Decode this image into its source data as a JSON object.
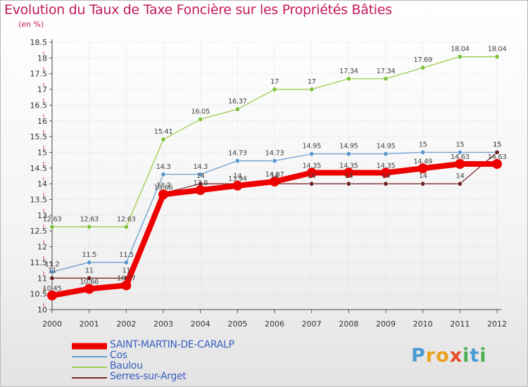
{
  "header": {
    "title": "Evolution du Taux de Taxe Foncière sur les Propriétés Bâties",
    "unit": "(en %)"
  },
  "logo": {
    "text": "Proxiti",
    "letters": [
      "P",
      "r",
      "o",
      "x",
      "i",
      "t",
      "i"
    ],
    "letter_colors": [
      "#4a9ad4",
      "#e8a21c",
      "#e8a21c",
      "#e64b2a",
      "#4caf50",
      "#4a9ad4",
      "#4caf50"
    ]
  },
  "chart_data": {
    "type": "line",
    "title": "Evolution du Taux de Taxe Foncière sur les Propriétés Bâties",
    "ylabel": "(en %)",
    "xlabel": "",
    "x": [
      "2000",
      "2001",
      "2002",
      "2003",
      "2004",
      "2005",
      "2006",
      "2007",
      "2008",
      "2009",
      "2010",
      "2011",
      "2012"
    ],
    "ylim": [
      10,
      18.5
    ],
    "yticks": [
      "10",
      "10.5",
      "11",
      "11.5",
      "12",
      "12.5",
      "13",
      "13.5",
      "14",
      "14.5",
      "15",
      "15.5",
      "16",
      "16.5",
      "17",
      "17.5",
      "18",
      "18.5"
    ],
    "grid": true,
    "legend_position": "bottom-left",
    "series": [
      {
        "name": "Baulou",
        "color": "#9ccc4c",
        "marker_color": "#7cc33a",
        "style": "thin",
        "values": [
          12.63,
          12.63,
          12.63,
          15.41,
          16.05,
          16.37,
          17,
          17,
          17.34,
          17.34,
          17.69,
          18.04,
          18.04
        ],
        "labels": [
          "12.63",
          "12.63",
          "12.63",
          "15.41",
          "16.05",
          "16.37",
          "17",
          "17",
          "17.34",
          "17.34",
          "17.69",
          "18.04",
          "18.04"
        ]
      },
      {
        "name": "Cos",
        "color": "#6a9fd0",
        "marker_color": "#5b97cf",
        "style": "thin",
        "values": [
          11.2,
          11.5,
          11.5,
          14.3,
          14.3,
          14.73,
          14.73,
          14.95,
          14.95,
          14.95,
          15,
          15,
          15
        ],
        "labels": [
          "11.2",
          "11.5",
          "11.5",
          "14.3",
          "14.3",
          "14.73",
          "14.73",
          "14.95",
          "14.95",
          "14.95",
          "15",
          "15",
          "15"
        ]
      },
      {
        "name": "Serres-sur-Arget",
        "color": "#7a2a2a",
        "marker_color": "#6b1f1f",
        "style": "thin",
        "values": [
          11,
          11,
          11,
          13.7,
          14,
          14,
          14,
          14,
          14,
          14,
          14,
          14,
          15
        ],
        "labels": [
          "11",
          "11",
          "11",
          "13.7",
          "14",
          "14",
          "14",
          "14",
          "14",
          "14",
          "14",
          "14",
          "15"
        ]
      },
      {
        "name": "SAINT-MARTIN-DE-CARALP",
        "color": "#ee0000",
        "marker_color": "#ee0000",
        "style": "thick",
        "values": [
          10.45,
          10.66,
          10.77,
          13.66,
          13.8,
          13.94,
          14.07,
          14.35,
          14.35,
          14.35,
          14.49,
          14.63,
          14.63
        ],
        "labels": [
          "10.45",
          "10.66",
          "10.77",
          "13.66",
          "13.8",
          "13.94",
          "14.07",
          "14.35",
          "14.35",
          "14.35",
          "14.49",
          "14.63",
          "14.63"
        ]
      }
    ],
    "legend_order": [
      "SAINT-MARTIN-DE-CARALP",
      "Cos",
      "Baulou",
      "Serres-sur-Arget"
    ]
  }
}
